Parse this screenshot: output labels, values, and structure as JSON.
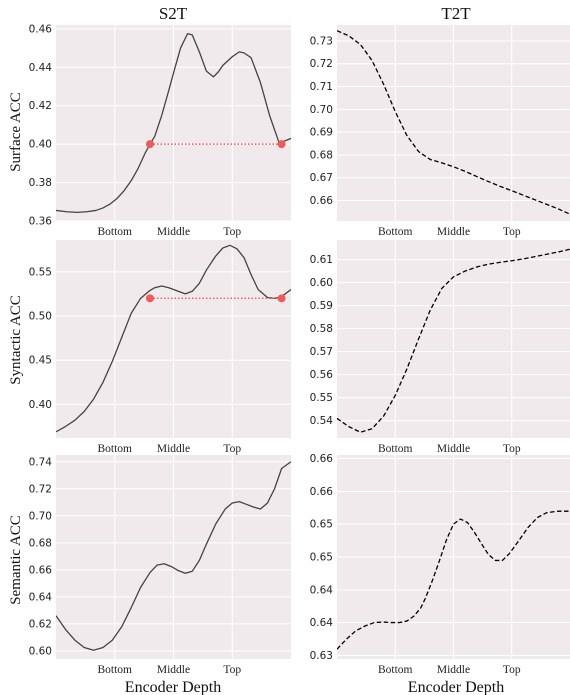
{
  "figure": {
    "columns": [
      "S2T",
      "T2T"
    ],
    "x_axis_label": "Encoder Depth",
    "colors": {
      "panel_bg": "#f0eaec",
      "grid": "#ffffff",
      "s2t_line": "#444444",
      "t2t_line": "#000000",
      "marker": "#f05a5a"
    }
  },
  "chart_data": [
    {
      "id": "s2t-surface",
      "type": "line",
      "column": "S2T",
      "ylabel": "Surface ACC",
      "line_style": "solid",
      "categories": [
        "Bottom",
        "Middle",
        "Top"
      ],
      "category_x": [
        0.25,
        0.5,
        0.75
      ],
      "xlim": [
        0,
        1
      ],
      "ylim": [
        0.36,
        0.462
      ],
      "yticks": [
        "0.36",
        "0.38",
        "0.40",
        "0.42",
        "0.44",
        "0.46"
      ],
      "ytick_values": [
        0.36,
        0.38,
        0.4,
        0.42,
        0.44,
        0.46
      ],
      "x": [
        0.0,
        0.045,
        0.09,
        0.13,
        0.17,
        0.2,
        0.23,
        0.26,
        0.29,
        0.32,
        0.35,
        0.38,
        0.4,
        0.42,
        0.45,
        0.48,
        0.5,
        0.53,
        0.56,
        0.58,
        0.61,
        0.64,
        0.67,
        0.69,
        0.71,
        0.75,
        0.78,
        0.8,
        0.83,
        0.87,
        0.91,
        0.95,
        1.0
      ],
      "y": [
        0.3655,
        0.3648,
        0.3645,
        0.3648,
        0.3655,
        0.3668,
        0.3688,
        0.3718,
        0.3758,
        0.381,
        0.3875,
        0.3955,
        0.4,
        0.404,
        0.415,
        0.428,
        0.437,
        0.45,
        0.4575,
        0.4568,
        0.448,
        0.438,
        0.435,
        0.4375,
        0.441,
        0.4455,
        0.448,
        0.4475,
        0.445,
        0.432,
        0.4145,
        0.4005,
        0.403
      ],
      "hline": {
        "x_start": 0.4,
        "x_end": 0.96,
        "y": 0.4,
        "style": "dotted",
        "markers": true
      }
    },
    {
      "id": "t2t-surface",
      "type": "line",
      "column": "T2T",
      "line_style": "dashed",
      "categories": [
        "Bottom",
        "Middle",
        "Top"
      ],
      "category_x": [
        0.25,
        0.5,
        0.75
      ],
      "xlim": [
        0,
        1
      ],
      "ylim": [
        0.651,
        0.737
      ],
      "yticks": [
        "0.66",
        "0.67",
        "0.68",
        "0.69",
        "0.70",
        "0.71",
        "0.72",
        "0.73"
      ],
      "ytick_values": [
        0.66,
        0.67,
        0.68,
        0.69,
        0.7,
        0.71,
        0.72,
        0.73
      ],
      "x": [
        0.0,
        0.05,
        0.1,
        0.15,
        0.2,
        0.25,
        0.3,
        0.35,
        0.4,
        0.45,
        0.5,
        0.55,
        0.6,
        0.65,
        0.7,
        0.75,
        0.8,
        0.85,
        0.9,
        0.95,
        1.0
      ],
      "y": [
        0.7345,
        0.7323,
        0.7285,
        0.7215,
        0.711,
        0.699,
        0.6885,
        0.6815,
        0.678,
        0.6765,
        0.6748,
        0.6728,
        0.6705,
        0.6683,
        0.6662,
        0.6643,
        0.6623,
        0.6603,
        0.6583,
        0.6563,
        0.654
      ]
    },
    {
      "id": "s2t-syntactic",
      "type": "line",
      "column": "S2T",
      "ylabel": "Syntactic ACC",
      "line_style": "solid",
      "categories": [
        "Bottom",
        "Middle",
        "Top"
      ],
      "category_x": [
        0.25,
        0.5,
        0.75
      ],
      "xlim": [
        0,
        1
      ],
      "ylim": [
        0.362,
        0.586
      ],
      "yticks": [
        "0.40",
        "0.45",
        "0.50",
        "0.55"
      ],
      "ytick_values": [
        0.4,
        0.45,
        0.5,
        0.55
      ],
      "x": [
        0.0,
        0.04,
        0.08,
        0.12,
        0.16,
        0.2,
        0.24,
        0.28,
        0.32,
        0.36,
        0.4,
        0.42,
        0.45,
        0.48,
        0.52,
        0.55,
        0.58,
        0.61,
        0.64,
        0.68,
        0.71,
        0.74,
        0.77,
        0.8,
        0.83,
        0.86,
        0.9,
        0.93,
        0.96,
        1.0
      ],
      "y": [
        0.369,
        0.375,
        0.382,
        0.392,
        0.406,
        0.425,
        0.449,
        0.476,
        0.503,
        0.52,
        0.529,
        0.532,
        0.534,
        0.532,
        0.528,
        0.525,
        0.528,
        0.537,
        0.552,
        0.568,
        0.577,
        0.58,
        0.576,
        0.566,
        0.547,
        0.53,
        0.521,
        0.52,
        0.522,
        0.53
      ],
      "hline": {
        "x_start": 0.4,
        "x_end": 0.96,
        "y": 0.52,
        "style": "dotted",
        "markers": true
      }
    },
    {
      "id": "t2t-syntactic",
      "type": "line",
      "column": "T2T",
      "line_style": "dashed",
      "categories": [
        "Bottom",
        "Middle",
        "Top"
      ],
      "category_x": [
        0.25,
        0.5,
        0.75
      ],
      "xlim": [
        0,
        1
      ],
      "ylim": [
        0.5325,
        0.6185
      ],
      "yticks": [
        "0.54",
        "0.55",
        "0.56",
        "0.57",
        "0.58",
        "0.59",
        "0.60",
        "0.61"
      ],
      "ytick_values": [
        0.54,
        0.55,
        0.56,
        0.57,
        0.58,
        0.59,
        0.6,
        0.61
      ],
      "x": [
        0.0,
        0.05,
        0.1,
        0.15,
        0.2,
        0.25,
        0.3,
        0.35,
        0.4,
        0.45,
        0.5,
        0.55,
        0.6,
        0.65,
        0.7,
        0.75,
        0.8,
        0.85,
        0.9,
        0.95,
        1.0
      ],
      "y": [
        0.541,
        0.5375,
        0.535,
        0.5365,
        0.542,
        0.551,
        0.5625,
        0.5755,
        0.588,
        0.5975,
        0.6025,
        0.605,
        0.6068,
        0.608,
        0.6088,
        0.6095,
        0.6103,
        0.6113,
        0.6123,
        0.6133,
        0.6145
      ]
    },
    {
      "id": "s2t-semantic",
      "type": "line",
      "column": "S2T",
      "ylabel": "Semantic ACC",
      "line_style": "solid",
      "categories": [
        "Bottom",
        "Middle",
        "Top"
      ],
      "category_x": [
        0.25,
        0.5,
        0.75
      ],
      "xlim": [
        0,
        1
      ],
      "ylim": [
        0.594,
        0.745
      ],
      "yticks": [
        "0.60",
        "0.62",
        "0.64",
        "0.66",
        "0.68",
        "0.70",
        "0.72",
        "0.74"
      ],
      "ytick_values": [
        0.6,
        0.62,
        0.64,
        0.66,
        0.68,
        0.7,
        0.72,
        0.74
      ],
      "x": [
        0.0,
        0.04,
        0.08,
        0.12,
        0.16,
        0.2,
        0.24,
        0.28,
        0.32,
        0.36,
        0.4,
        0.43,
        0.46,
        0.49,
        0.52,
        0.55,
        0.58,
        0.61,
        0.64,
        0.68,
        0.72,
        0.75,
        0.78,
        0.81,
        0.84,
        0.87,
        0.9,
        0.93,
        0.96,
        1.0
      ],
      "y": [
        0.626,
        0.616,
        0.608,
        0.6025,
        0.6005,
        0.6025,
        0.608,
        0.618,
        0.632,
        0.647,
        0.658,
        0.6635,
        0.6645,
        0.6625,
        0.6595,
        0.6575,
        0.659,
        0.667,
        0.679,
        0.694,
        0.705,
        0.7095,
        0.7105,
        0.7085,
        0.7065,
        0.705,
        0.7095,
        0.72,
        0.735,
        0.74
      ]
    },
    {
      "id": "t2t-semantic",
      "type": "line",
      "column": "T2T",
      "line_style": "dashed",
      "categories": [
        "Bottom",
        "Middle",
        "Top"
      ],
      "category_x": [
        0.25,
        0.5,
        0.75
      ],
      "xlim": [
        0,
        1
      ],
      "ylim": [
        0.6293,
        0.6707
      ],
      "yticks": [
        "0.63",
        "0.64",
        "0.64",
        "0.65",
        "0.65",
        "0.66",
        "0.66"
      ],
      "ytick_values": [
        0.63,
        0.6367,
        0.6433,
        0.65,
        0.6567,
        0.6633,
        0.67
      ],
      "x": [
        0.0,
        0.04,
        0.08,
        0.12,
        0.16,
        0.2,
        0.23,
        0.27,
        0.3,
        0.33,
        0.36,
        0.38,
        0.41,
        0.44,
        0.47,
        0.5,
        0.53,
        0.56,
        0.59,
        0.62,
        0.65,
        0.68,
        0.71,
        0.74,
        0.78,
        0.82,
        0.86,
        0.9,
        0.95,
        1.0
      ],
      "y": [
        0.6313,
        0.6333,
        0.635,
        0.636,
        0.6367,
        0.6368,
        0.6367,
        0.6367,
        0.637,
        0.638,
        0.6397,
        0.6417,
        0.6453,
        0.6493,
        0.6535,
        0.6567,
        0.6577,
        0.657,
        0.655,
        0.6527,
        0.6505,
        0.6493,
        0.6493,
        0.6507,
        0.6533,
        0.656,
        0.658,
        0.659,
        0.6593,
        0.6593
      ]
    }
  ]
}
